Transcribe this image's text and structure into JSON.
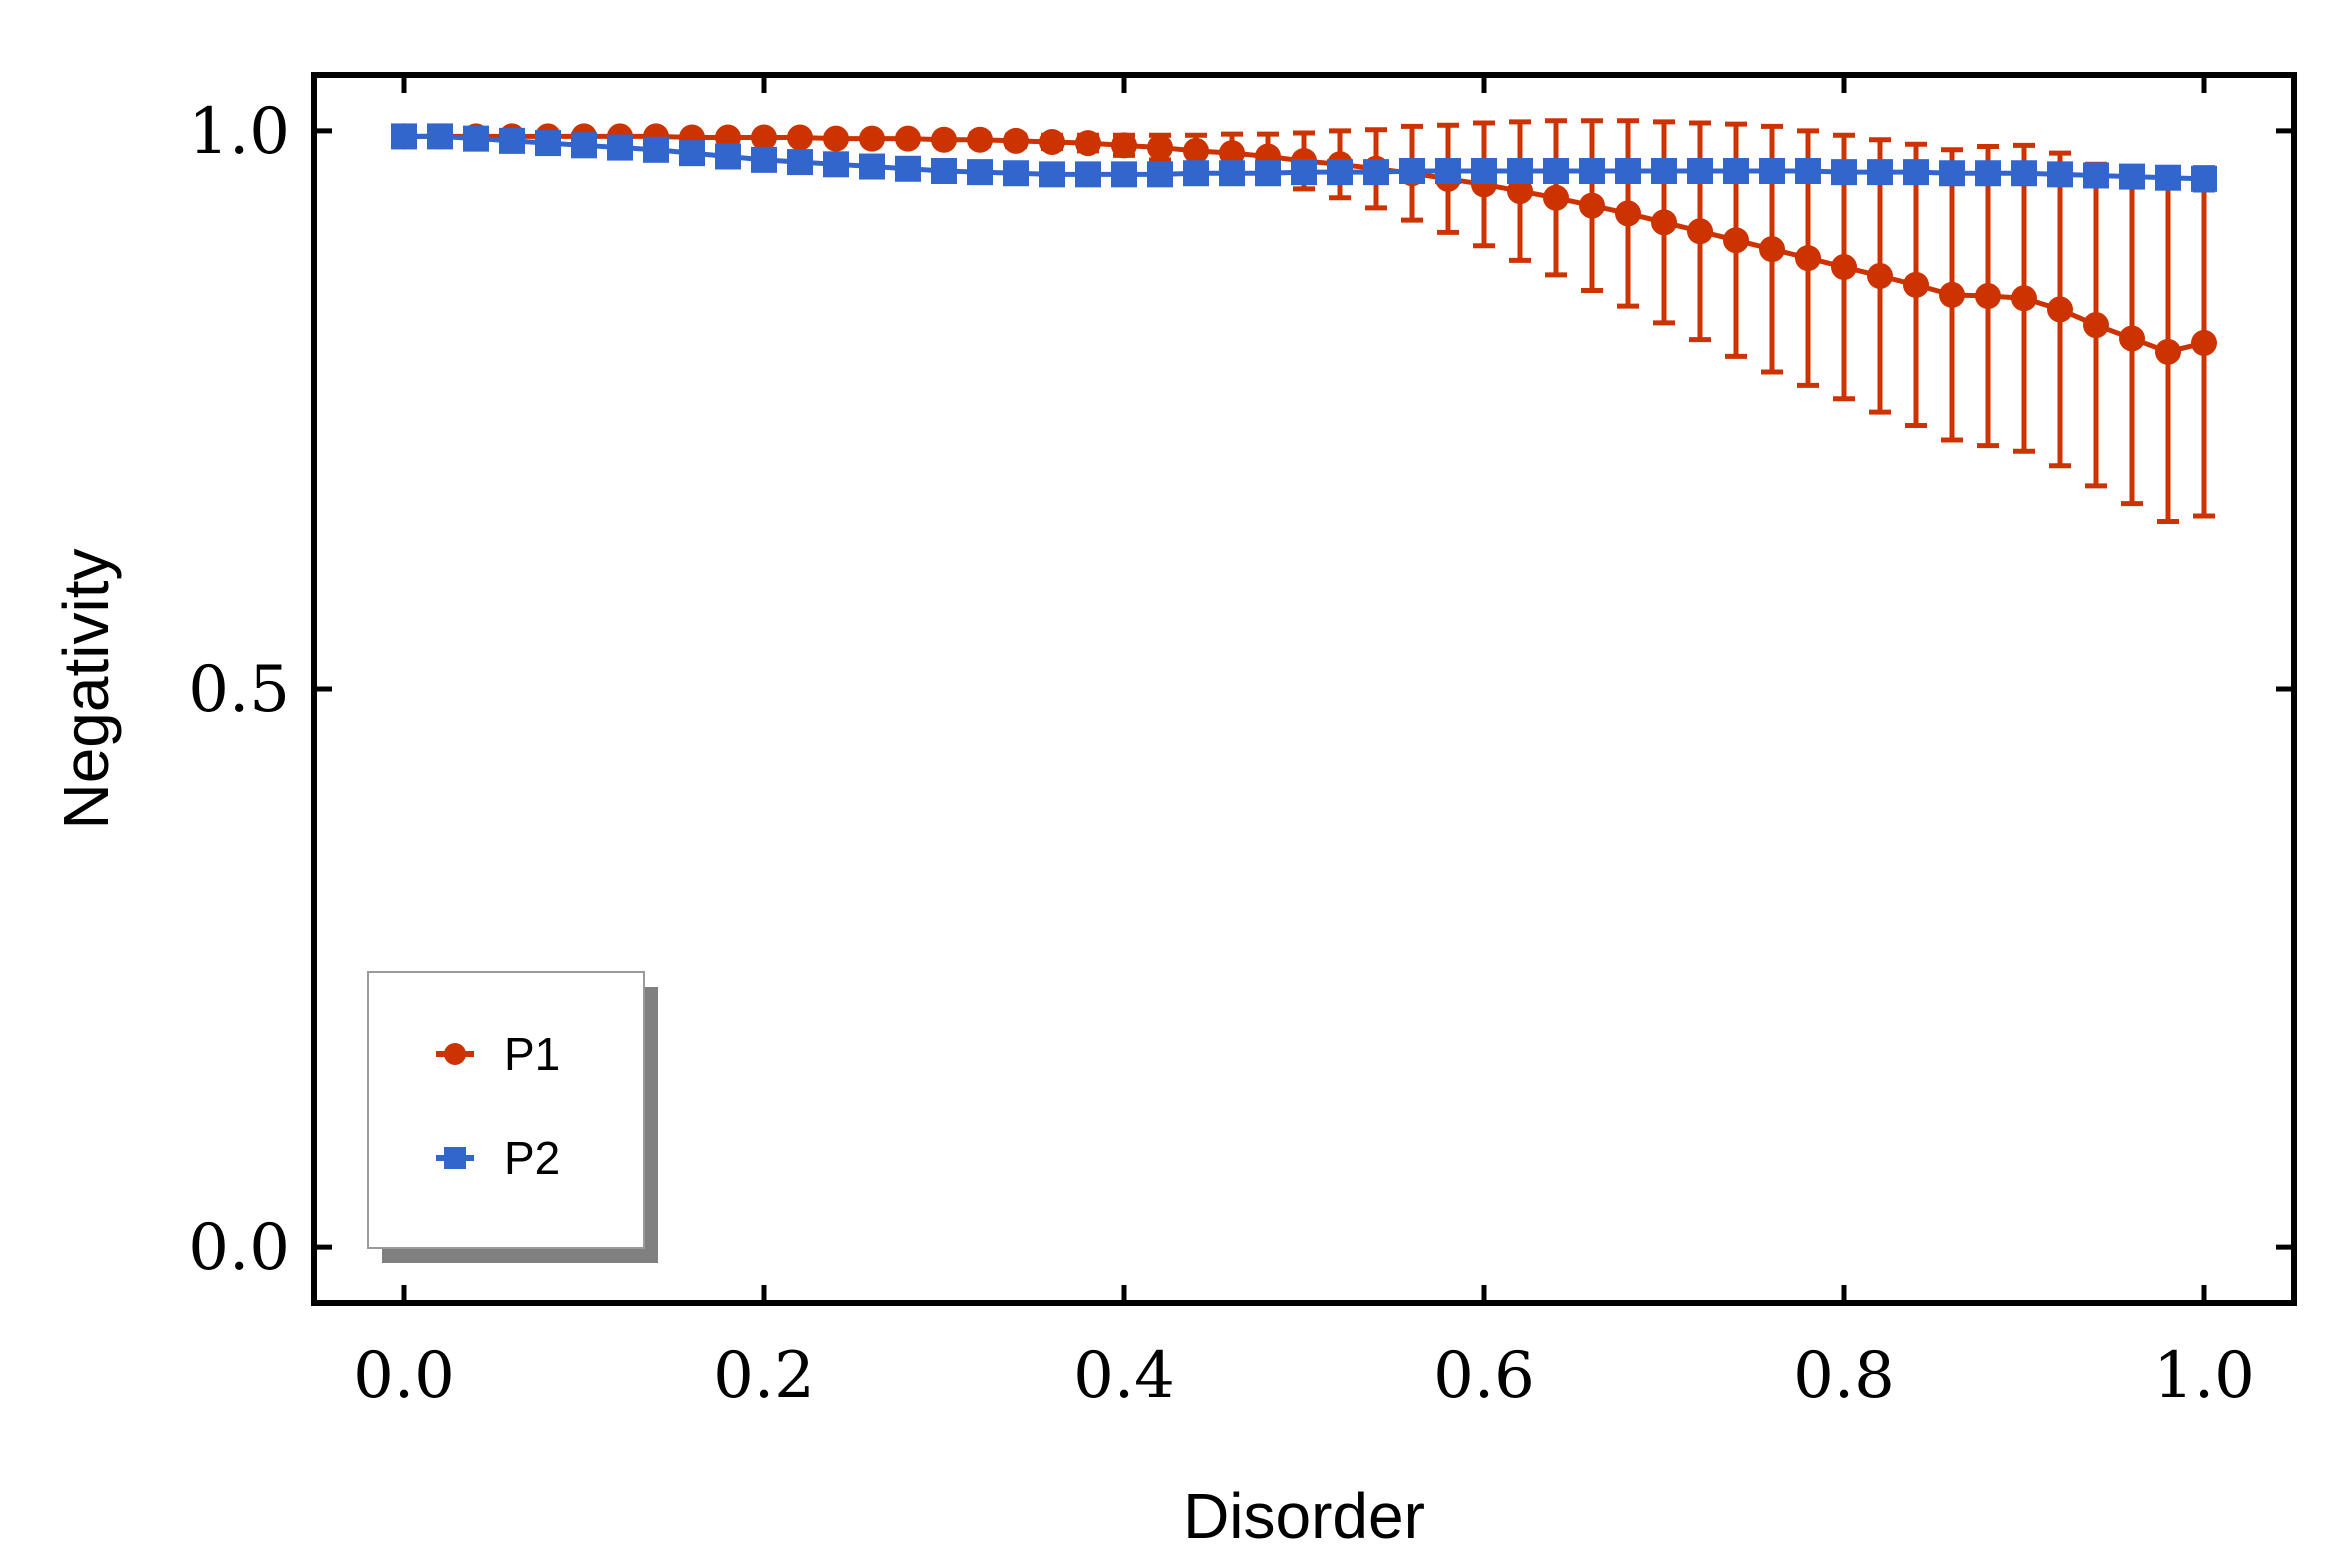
{
  "chart_data": {
    "type": "line",
    "title": "",
    "xlabel": "Disorder",
    "ylabel": "Negativity",
    "xlim": [
      -0.05,
      1.05
    ],
    "ylim": [
      -0.05,
      1.05
    ],
    "xticks": [
      0.0,
      0.2,
      0.4,
      0.6,
      0.8,
      1.0
    ],
    "xtick_labels": [
      "0.0",
      "0.2",
      "0.4",
      "0.6",
      "0.8",
      "1.0"
    ],
    "yticks": [
      0.0,
      0.5,
      1.0
    ],
    "ytick_labels": [
      "0.0",
      "0.5",
      "1.0"
    ],
    "grid": false,
    "legend_position": "lower-left",
    "x": [
      0.0,
      0.02,
      0.04,
      0.06,
      0.08,
      0.1,
      0.12,
      0.14,
      0.16,
      0.18,
      0.2,
      0.22,
      0.24,
      0.26,
      0.28,
      0.3,
      0.32,
      0.34,
      0.36,
      0.38,
      0.4,
      0.42,
      0.44,
      0.46,
      0.48,
      0.5,
      0.52,
      0.54,
      0.56,
      0.58,
      0.6,
      0.62,
      0.64,
      0.66,
      0.68,
      0.7,
      0.72,
      0.74,
      0.76,
      0.78,
      0.8,
      0.82,
      0.84,
      0.86,
      0.88,
      0.9,
      0.92,
      0.94,
      0.96,
      0.98,
      1.0
    ],
    "series": [
      {
        "name": "P1",
        "marker": "circle",
        "color": "#cc3300",
        "values": [
          0.995,
          0.995,
          0.995,
          0.995,
          0.995,
          0.995,
          0.995,
          0.995,
          0.994,
          0.994,
          0.994,
          0.994,
          0.993,
          0.993,
          0.993,
          0.992,
          0.992,
          0.991,
          0.99,
          0.989,
          0.987,
          0.985,
          0.982,
          0.98,
          0.977,
          0.973,
          0.97,
          0.966,
          0.962,
          0.957,
          0.952,
          0.946,
          0.94,
          0.933,
          0.926,
          0.918,
          0.91,
          0.902,
          0.894,
          0.886,
          0.878,
          0.87,
          0.862,
          0.853,
          0.852,
          0.85,
          0.84,
          0.826,
          0.814,
          0.802,
          0.81
        ],
        "errors": [
          0.001,
          0.001,
          0.001,
          0.001,
          0.001,
          0.001,
          0.002,
          0.002,
          0.002,
          0.002,
          0.003,
          0.003,
          0.003,
          0.003,
          0.004,
          0.004,
          0.005,
          0.005,
          0.006,
          0.007,
          0.009,
          0.011,
          0.014,
          0.017,
          0.02,
          0.025,
          0.03,
          0.035,
          0.042,
          0.048,
          0.055,
          0.062,
          0.069,
          0.076,
          0.083,
          0.09,
          0.097,
          0.104,
          0.11,
          0.114,
          0.118,
          0.122,
          0.126,
          0.13,
          0.134,
          0.137,
          0.14,
          0.144,
          0.148,
          0.152,
          0.155
        ]
      },
      {
        "name": "P2",
        "marker": "square",
        "color": "#3366cc",
        "values": [
          0.995,
          0.995,
          0.993,
          0.991,
          0.989,
          0.987,
          0.985,
          0.983,
          0.98,
          0.977,
          0.974,
          0.972,
          0.97,
          0.968,
          0.966,
          0.964,
          0.963,
          0.962,
          0.961,
          0.961,
          0.961,
          0.961,
          0.962,
          0.962,
          0.962,
          0.963,
          0.963,
          0.963,
          0.964,
          0.964,
          0.964,
          0.964,
          0.964,
          0.964,
          0.964,
          0.964,
          0.964,
          0.964,
          0.964,
          0.964,
          0.963,
          0.963,
          0.963,
          0.962,
          0.962,
          0.962,
          0.961,
          0.96,
          0.959,
          0.958,
          0.957
        ],
        "errors": [
          0.002,
          0.002,
          0.002,
          0.003,
          0.003,
          0.003,
          0.003,
          0.003,
          0.004,
          0.004,
          0.004,
          0.004,
          0.004,
          0.004,
          0.005,
          0.005,
          0.005,
          0.005,
          0.005,
          0.005,
          0.005,
          0.005,
          0.005,
          0.005,
          0.005,
          0.005,
          0.005,
          0.006,
          0.006,
          0.006,
          0.006,
          0.006,
          0.006,
          0.006,
          0.006,
          0.006,
          0.006,
          0.006,
          0.006,
          0.006,
          0.007,
          0.007,
          0.007,
          0.007,
          0.007,
          0.008,
          0.008,
          0.008,
          0.009,
          0.009,
          0.01
        ]
      }
    ]
  }
}
